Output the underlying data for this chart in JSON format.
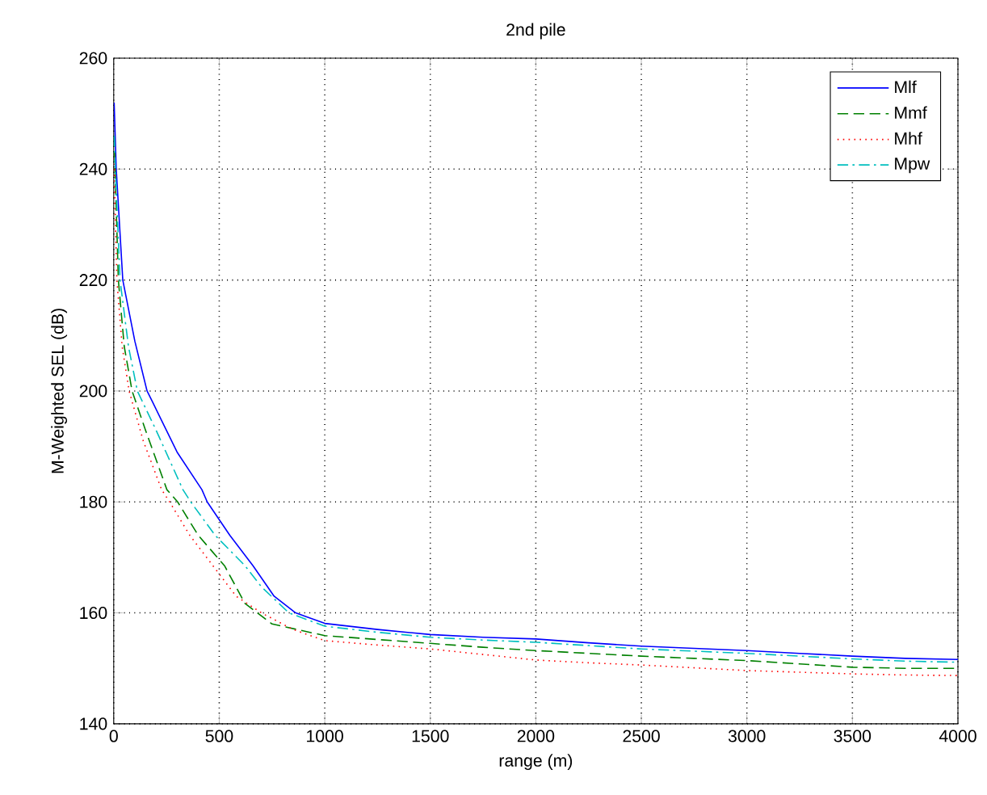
{
  "chart_data": {
    "type": "line",
    "title": "2nd pile",
    "xlabel": "range (m)",
    "ylabel": "M-Weighted SEL (dB)",
    "xlim": [
      0,
      4000
    ],
    "ylim": [
      140,
      260
    ],
    "xticks": [
      0,
      500,
      1000,
      1500,
      2000,
      2500,
      3000,
      3500,
      4000
    ],
    "yticks": [
      140,
      160,
      180,
      200,
      220,
      240,
      260
    ],
    "grid": true,
    "legend": "top right",
    "series": [
      {
        "name": "Mlf",
        "color": "#0000ff",
        "line_style": "solid",
        "x": [
          2,
          12,
          43,
          100,
          158,
          188,
          300,
          418,
          443,
          550,
          660,
          760,
          862,
          1000,
          1250,
          1500,
          1750,
          2000,
          2250,
          2500,
          2750,
          3000,
          3250,
          3500,
          3750,
          4000
        ],
        "values": [
          252,
          240,
          220,
          209,
          200,
          197.7,
          189,
          182.2,
          180,
          174,
          168.5,
          163,
          160,
          158.1,
          157,
          156.1,
          155.6,
          155.3,
          154.6,
          154,
          153.6,
          153.2,
          152.7,
          152.2,
          151.8,
          151.6
        ]
      },
      {
        "name": "Mmf",
        "color": "#008000",
        "line_style": "dashed",
        "x": [
          2,
          8,
          22,
          50,
          87,
          150,
          252,
          303,
          400,
          525,
          622,
          750,
          1000,
          1250,
          1500,
          1750,
          2000,
          2250,
          2500,
          2750,
          3000,
          3250,
          3500,
          3750,
          4000
        ],
        "values": [
          246,
          238,
          220,
          208,
          200,
          193,
          182.2,
          180,
          174,
          168.5,
          161.7,
          158,
          155.9,
          155.2,
          154.5,
          153.8,
          153.2,
          152.7,
          152.2,
          151.8,
          151.4,
          150.8,
          150.2,
          150,
          150
        ]
      },
      {
        "name": "Mhf",
        "color": "#ff0000",
        "line_style": "dotted",
        "x": [
          2,
          6,
          15,
          40,
          73,
          140,
          227,
          265,
          360,
          470,
          580,
          700,
          850,
          1000,
          1250,
          1500,
          1750,
          2000,
          2250,
          2500,
          2750,
          3000,
          3250,
          3500,
          3750,
          4000
        ],
        "values": [
          242,
          234,
          220,
          208,
          200,
          191,
          182.2,
          180,
          174,
          168.5,
          163,
          160,
          157,
          155,
          154.2,
          153.5,
          152.5,
          151.5,
          151,
          150.6,
          150.1,
          149.6,
          149.3,
          149,
          148.8,
          148.7
        ]
      },
      {
        "name": "Mpw",
        "color": "#00bfbf",
        "line_style": "dashdot",
        "x": [
          2,
          10,
          30,
          70,
          112,
          200,
          328,
          365,
          480,
          622,
          700,
          830,
          1000,
          1250,
          1500,
          1750,
          2000,
          2250,
          2500,
          2750,
          3000,
          3250,
          3500,
          3750,
          4000
        ],
        "values": [
          246,
          238,
          220,
          208,
          200,
          193,
          182.2,
          180,
          174,
          168.5,
          164.7,
          160,
          157.6,
          156.5,
          155.6,
          155.1,
          154.7,
          154.1,
          153.5,
          153.1,
          152.7,
          152.2,
          151.7,
          151.3,
          151.1
        ]
      }
    ]
  }
}
